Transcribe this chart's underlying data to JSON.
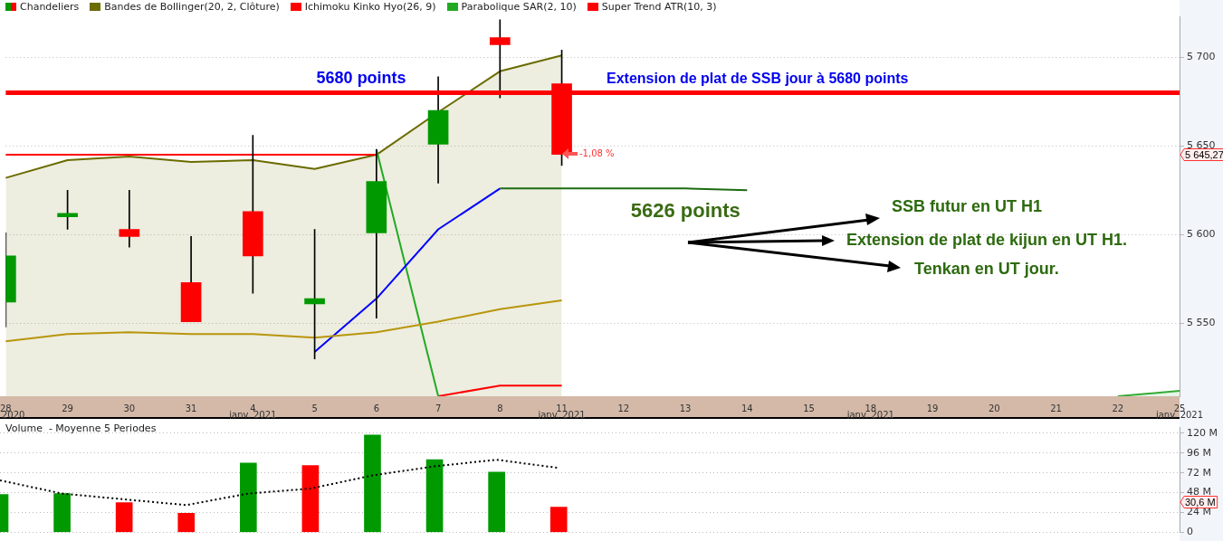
{
  "chart_data": [
    {
      "type": "candlestick",
      "categories": [
        "28",
        "29",
        "30",
        "31",
        "4",
        "5",
        "6",
        "7",
        "8",
        "11",
        "12",
        "13",
        "14",
        "15",
        "18",
        "19",
        "20",
        "21",
        "22",
        "25"
      ],
      "series": [
        {
          "name": "Chandeliers",
          "colors": [
            "#009900",
            "#009900",
            "#ff0000",
            "#ff0000",
            "#ff0000",
            "#009900",
            "#009900",
            "#009900",
            "#ff0000",
            "#ff0000",
            null,
            null,
            null,
            null,
            null,
            null,
            null,
            null,
            null,
            null
          ],
          "ohlc": [
            [
              5562,
              5601,
              5548,
              5588
            ],
            [
              5610,
              5625,
              5603,
              5612
            ],
            [
              5603,
              5625,
              5593,
              5599
            ],
            [
              5573,
              5599,
              5551,
              5551
            ],
            [
              5613,
              5656,
              5567,
              5588
            ],
            [
              5561,
              5603,
              5530,
              5564
            ],
            [
              5601,
              5648,
              5553,
              5630
            ],
            [
              5651,
              5689,
              5629,
              5670
            ],
            [
              5711,
              5721,
              5677,
              5707
            ],
            [
              5685,
              5704,
              5639,
              5645.27
            ],
            null,
            null,
            null,
            null,
            null,
            null,
            null,
            null,
            null,
            null
          ]
        },
        {
          "type": "area",
          "name": "Bandes de Bollinger(20, 2, Clôture)",
          "color": "#6b6b00",
          "values": [
            5632,
            5642,
            5644,
            5641,
            5642,
            5637,
            5645,
            5669,
            5692,
            5701,
            null,
            null,
            null,
            null,
            null,
            null,
            null,
            null,
            null,
            null
          ]
        },
        {
          "type": "line",
          "color": "#b8960c",
          "values": [
            5540,
            5544,
            5545,
            5544,
            5544,
            5542,
            5545,
            5551,
            5558,
            5563,
            null,
            null,
            null,
            null,
            null,
            null,
            null,
            null,
            null,
            null
          ]
        },
        {
          "type": "line",
          "name": "Ichimoku Kinko Hyo(26, 9)",
          "color": "#ff0000",
          "values": [
            5645,
            5645,
            5645,
            5645,
            5645,
            5645,
            5645,
            null,
            null,
            null,
            null,
            null,
            null,
            null,
            null,
            null,
            null,
            null,
            null,
            null
          ]
        },
        {
          "type": "line",
          "color": "#0000ff",
          "values": [
            null,
            null,
            null,
            null,
            null,
            5534,
            5564,
            5603,
            5626,
            null,
            null,
            null,
            null,
            null,
            null,
            null,
            null,
            null,
            null,
            null
          ]
        },
        {
          "type": "line",
          "color": "#1e6b12",
          "values": [
            null,
            null,
            null,
            null,
            null,
            null,
            null,
            null,
            5626,
            5626,
            5626,
            5626,
            5625,
            null,
            null,
            null,
            null,
            null,
            null,
            null
          ]
        },
        {
          "type": "line",
          "name": "Parabolique SAR(2, 10)",
          "color": "#22aa22",
          "values": [
            null,
            null,
            null,
            null,
            null,
            null,
            5648,
            5509,
            null,
            null,
            null,
            null,
            null,
            null,
            null,
            null,
            null,
            null,
            null,
            null
          ]
        },
        {
          "type": "line",
          "name": "Super Trend ATR(10, 3)",
          "color": "#ff0000",
          "values": [
            null,
            null,
            null,
            null,
            null,
            null,
            null,
            5509,
            5515,
            5515,
            null,
            null,
            null,
            null,
            null,
            null,
            null,
            null,
            null,
            null
          ]
        },
        {
          "type": "area",
          "color": "#33aa33",
          "values": [
            null,
            null,
            null,
            null,
            null,
            null,
            null,
            null,
            null,
            null,
            null,
            null,
            null,
            null,
            null,
            null,
            null,
            null,
            5509,
            5512
          ]
        }
      ],
      "ylim": [
        5509,
        5723
      ],
      "yticks": [
        {
          "value": 5550,
          "label": "5 550"
        },
        {
          "value": 5600,
          "label": "5 600"
        },
        {
          "value": 5650,
          "label": "5 650"
        },
        {
          "value": 5700,
          "label": "5 700"
        }
      ],
      "grid": "y",
      "legend": "top left",
      "ref_lines": [
        {
          "axis": "y",
          "value": 5680,
          "label": "Extension de plat de SSB jour à 5680 points",
          "color": "#ff0000"
        }
      ],
      "annotations": [
        {
          "text": "5680 points",
          "x": "5",
          "y": 5680
        },
        {
          "text": "5626 points",
          "x": "12",
          "y": 5626
        },
        "-1,08 %",
        "5 645,27",
        "2020",
        "janv. 2021",
        "janv. 2021",
        "janv. 2021",
        "janv. 2021",
        "SSB futur en UT H1",
        "Extension de plat de kijun en UT H1.",
        "Tenkan en UT jour."
      ]
    },
    {
      "type": "bar",
      "title": "Volume  - Moyenne 5 Periodes",
      "categories": [
        "28",
        "29",
        "30",
        "31",
        "4",
        "5",
        "6",
        "7",
        "8",
        "11",
        "12",
        "13",
        "14",
        "15",
        "18",
        "19",
        "20",
        "21",
        "22",
        "25"
      ],
      "series": [
        {
          "colors": [
            "#009900",
            "#009900",
            "#ff0000",
            "#ff0000",
            "#009900",
            "#ff0000",
            "#009900",
            "#009900",
            "#009900",
            "#ff0000",
            null,
            null,
            null,
            null,
            null,
            null,
            null,
            null,
            null,
            null
          ],
          "values": [
            46,
            47,
            36,
            23,
            84,
            81,
            118,
            88,
            73,
            30.6,
            null,
            null,
            null,
            null,
            null,
            null,
            null,
            null,
            null,
            null
          ]
        },
        {
          "type": "line",
          "color": "#000000",
          "line_style": "dotted",
          "values": [
            63,
            47,
            40,
            33,
            47,
            53,
            69,
            80,
            88,
            78,
            null,
            null,
            null,
            null,
            null,
            null,
            null,
            null,
            null,
            null
          ]
        }
      ],
      "ylim": [
        0,
        127
      ],
      "yticks": [
        0,
        {
          "value": 24,
          "label": "24 M"
        },
        {
          "value": 48,
          "label": "48 M"
        },
        {
          "value": 72,
          "label": "72 M"
        },
        {
          "value": 96,
          "label": "96 M"
        },
        {
          "value": 120,
          "label": "120 M"
        }
      ],
      "grid": "y",
      "tick_labels": "y",
      "annotations": [
        "30,6 M"
      ]
    }
  ]
}
